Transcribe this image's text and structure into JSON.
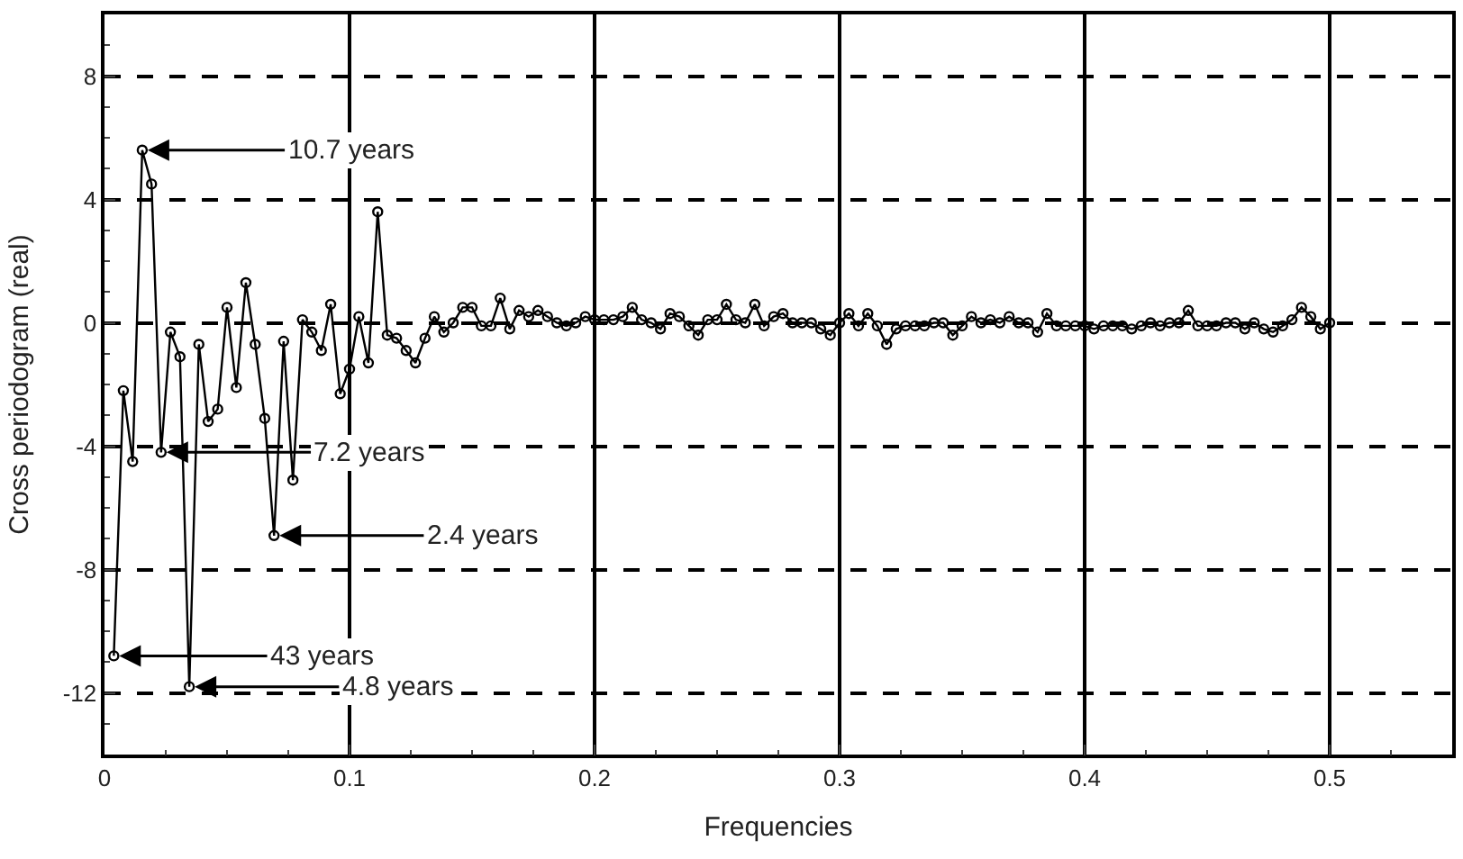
{
  "chart_data": {
    "type": "line",
    "xlabel": "Frequencies",
    "ylabel": "Cross periodogram (real)",
    "xlim": [
      0,
      0.55
    ],
    "ylim": [
      -14,
      10
    ],
    "xticks": [
      0,
      0.1,
      0.2,
      0.3,
      0.4,
      0.5
    ],
    "yticks": [
      -12,
      -8,
      -4,
      0,
      4,
      8
    ],
    "grid": true,
    "marker": "circle",
    "line_style": "solid",
    "legend": false,
    "series": [
      {
        "color": "#000000",
        "x": [
          0.0038,
          0.0077,
          0.0115,
          0.0154,
          0.0192,
          0.0231,
          0.0269,
          0.0308,
          0.0346,
          0.0385,
          0.0423,
          0.0462,
          0.05,
          0.0538,
          0.0577,
          0.0615,
          0.0654,
          0.0692,
          0.0731,
          0.0769,
          0.0808,
          0.0846,
          0.0885,
          0.0923,
          0.0962,
          0.1,
          0.1038,
          0.1077,
          0.1115,
          0.1154,
          0.1192,
          0.1231,
          0.1269,
          0.1308,
          0.1346,
          0.1385,
          0.1423,
          0.1462,
          0.15,
          0.1538,
          0.1577,
          0.1615,
          0.1654,
          0.1692,
          0.1731,
          0.1769,
          0.1808,
          0.1846,
          0.1885,
          0.1923,
          0.1962,
          0.2,
          0.2038,
          0.2077,
          0.2115,
          0.2154,
          0.2192,
          0.2231,
          0.2269,
          0.2308,
          0.2346,
          0.2385,
          0.2423,
          0.2462,
          0.25,
          0.2538,
          0.2577,
          0.2615,
          0.2654,
          0.2692,
          0.2731,
          0.2769,
          0.2808,
          0.2846,
          0.2885,
          0.2923,
          0.2962,
          0.3,
          0.3038,
          0.3077,
          0.3115,
          0.3154,
          0.3192,
          0.3231,
          0.3269,
          0.3308,
          0.3346,
          0.3385,
          0.3423,
          0.3462,
          0.35,
          0.3538,
          0.3577,
          0.3615,
          0.3654,
          0.3692,
          0.3731,
          0.3769,
          0.3808,
          0.3846,
          0.3885,
          0.3923,
          0.3962,
          0.4,
          0.4038,
          0.4077,
          0.4115,
          0.4154,
          0.4192,
          0.4231,
          0.4269,
          0.4308,
          0.4346,
          0.4385,
          0.4423,
          0.4462,
          0.45,
          0.4538,
          0.4577,
          0.4615,
          0.4654,
          0.4692,
          0.4731,
          0.4769,
          0.4808,
          0.4846,
          0.4885,
          0.4923,
          0.4962,
          0.5
        ],
        "values": [
          -10.8,
          -2.2,
          -4.5,
          5.6,
          4.5,
          -4.2,
          -0.3,
          -1.1,
          -11.8,
          -0.7,
          -3.2,
          -2.8,
          0.5,
          -2.1,
          1.3,
          -0.7,
          -3.1,
          -6.9,
          -0.6,
          -5.1,
          0.1,
          -0.3,
          -0.9,
          0.6,
          -2.3,
          -1.5,
          0.2,
          -1.3,
          3.6,
          -0.4,
          -0.5,
          -0.9,
          -1.3,
          -0.5,
          0.2,
          -0.3,
          0.0,
          0.5,
          0.5,
          -0.1,
          -0.1,
          0.8,
          -0.2,
          0.4,
          0.2,
          0.4,
          0.2,
          0.0,
          -0.1,
          0.0,
          0.2,
          0.1,
          0.1,
          0.1,
          0.2,
          0.5,
          0.1,
          0.0,
          -0.2,
          0.3,
          0.2,
          -0.1,
          -0.4,
          0.1,
          0.1,
          0.6,
          0.1,
          0.0,
          0.6,
          -0.1,
          0.2,
          0.3,
          0.0,
          0.0,
          0.0,
          -0.2,
          -0.4,
          0.0,
          0.3,
          -0.1,
          0.3,
          -0.1,
          -0.7,
          -0.2,
          -0.1,
          -0.1,
          -0.1,
          0.0,
          0.0,
          -0.4,
          -0.1,
          0.2,
          0.0,
          0.1,
          0.0,
          0.2,
          0.0,
          0.0,
          -0.3,
          0.3,
          -0.1,
          -0.1,
          -0.1,
          -0.1,
          -0.2,
          -0.1,
          -0.1,
          -0.1,
          -0.2,
          -0.1,
          0.0,
          -0.1,
          0.0,
          0.0,
          0.4,
          -0.1,
          -0.1,
          -0.1,
          0.0,
          0.0,
          -0.2,
          0.0,
          -0.2,
          -0.3,
          -0.1,
          0.1,
          0.5,
          0.2,
          -0.2,
          0.0
        ]
      }
    ],
    "annotations": [
      {
        "text": "10.7 years",
        "x": 0.0154,
        "y": 5.6
      },
      {
        "text": "7.2 years",
        "x": 0.0231,
        "y": -4.2
      },
      {
        "text": "2.4 years",
        "x": 0.0692,
        "y": -6.9
      },
      {
        "text": "43 years",
        "x": 0.0038,
        "y": -10.8
      },
      {
        "text": "4.8 years",
        "x": 0.0346,
        "y": -11.8
      }
    ]
  }
}
